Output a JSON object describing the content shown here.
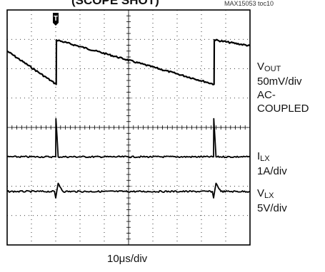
{
  "header": {
    "cropped_title": "(SCOPE SHOT)",
    "doc_ref": "MAX15053 toc10"
  },
  "trigger_marker": "T",
  "channels": [
    {
      "name": "V",
      "sub": "OUT",
      "scale": "50mV/div",
      "coupling": "AC-COUPLED"
    },
    {
      "name": "I",
      "sub": "LX",
      "scale": "1A/div",
      "coupling": ""
    },
    {
      "name": "V",
      "sub": "LX",
      "scale": "5V/div",
      "coupling": ""
    }
  ],
  "timebase": "10μs/div",
  "colors": {
    "trace": "#000000",
    "frame": "#000000",
    "grid": "#000000"
  },
  "chart_data": {
    "type": "line",
    "x_unit": "div",
    "xlim": [
      0,
      10
    ],
    "ylim": [
      0,
      8
    ],
    "grid": true,
    "series": [
      {
        "name": "VOUT",
        "x": [
          0,
          2.02,
          2.03,
          8.52,
          8.53,
          10
        ],
        "values": [
          6.6,
          5.47,
          6.98,
          5.47,
          6.98,
          6.78
        ]
      },
      {
        "name": "ILX",
        "x": [
          0,
          2.0,
          2.01,
          2.1,
          8.5,
          8.51,
          8.6,
          10
        ],
        "values": [
          3.0,
          3.0,
          4.3,
          3.0,
          3.0,
          4.3,
          3.0,
          3.0
        ]
      },
      {
        "name": "VLX",
        "x": [
          0,
          1.95,
          2.0,
          2.1,
          2.3,
          8.45,
          8.5,
          8.6,
          8.8,
          10
        ],
        "values": [
          1.82,
          1.82,
          1.6,
          2.1,
          1.82,
          1.82,
          1.6,
          2.1,
          1.82,
          1.82
        ]
      }
    ]
  }
}
